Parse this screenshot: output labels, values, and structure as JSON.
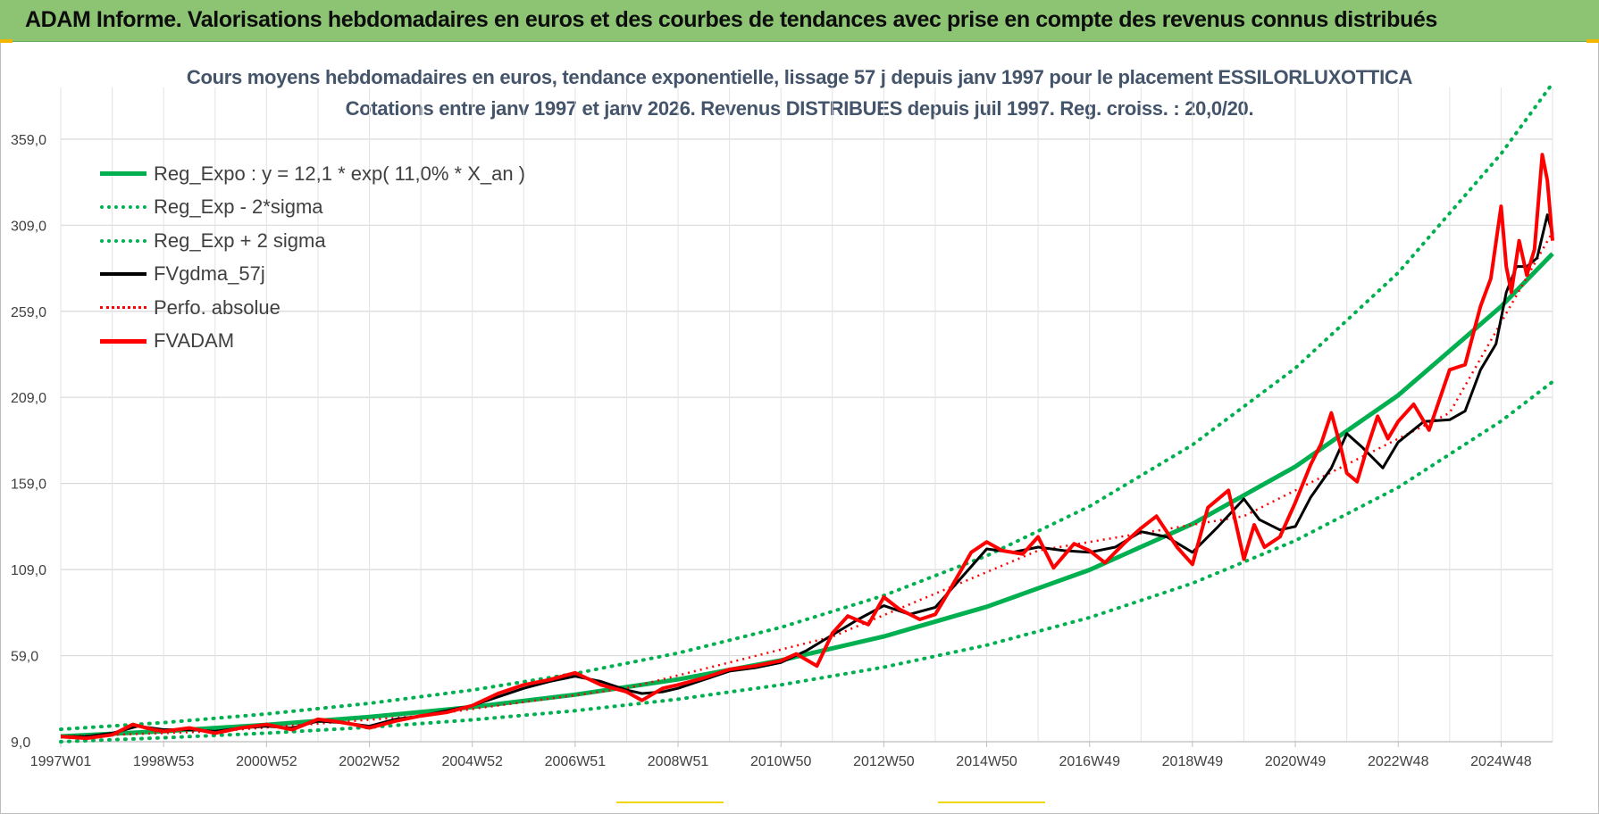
{
  "banner": {
    "title": "ADAM Informe. Valorisations hebdomadaires en euros et des courbes de tendances avec prise en compte des revenus connus distribués"
  },
  "colors": {
    "banner_bg": "#8cc474",
    "trend": "#00b050",
    "fvgdma": "#000000",
    "fvadam": "#ff0000",
    "title_text": "#44546a"
  },
  "chart_data": {
    "type": "line",
    "title": "Cours moyens hebdomadaires en euros, tendance exponentielle, lissage 57 j depuis janv 1997 pour le placement ESSILORLUXOTTICA",
    "subtitle": "Cotations entre janv 1997 et janv 2026. Revenus DISTRIBUES depuis juil 1997. Reg. croiss. : 20,0/20.",
    "xlabel": "",
    "ylabel": "",
    "ylim": [
      9,
      389
    ],
    "xlim": [
      1997.0,
      2026.0
    ],
    "y_ticks": [
      "9,0",
      "59,0",
      "109,0",
      "159,0",
      "209,0",
      "259,0",
      "309,0",
      "359,0"
    ],
    "y_tick_values": [
      9,
      59,
      109,
      159,
      209,
      259,
      309,
      359
    ],
    "x_ticks": [
      "1997W01",
      "1998W53",
      "2000W52",
      "2002W52",
      "2004W52",
      "2006W51",
      "2008W51",
      "2010W50",
      "2012W50",
      "2014W50",
      "2016W49",
      "2018W49",
      "2020W49",
      "2022W48",
      "2024W48"
    ],
    "x_tick_values": [
      1997.0,
      1999.0,
      2001.0,
      2003.0,
      2005.0,
      2007.0,
      2009.0,
      2011.0,
      2013.0,
      2015.0,
      2017.0,
      2019.0,
      2021.0,
      2023.0,
      2025.0
    ],
    "grid": true,
    "legend_position": "top-left",
    "legend": [
      "Reg_Expo : y = 12,1 * exp( 11,0% *  X_an )",
      "Reg_Exp - 2*sigma",
      "Reg_Exp + 2 sigma",
      "FVgdma_57j",
      "Perfo. absolue",
      "FVADAM"
    ],
    "series": [
      {
        "name": "Reg_Expo : y = 12,1 * exp( 11,0% *  X_an )",
        "style": "solid-green",
        "x": [
          1997,
          1999,
          2001,
          2003,
          2005,
          2007,
          2009,
          2011,
          2013,
          2015,
          2017,
          2019,
          2021,
          2023,
          2025,
          2026
        ],
        "values": [
          12.1,
          15.1,
          18.8,
          23.4,
          29.1,
          36.3,
          45.2,
          56.3,
          70.1,
          87.4,
          108.8,
          135.5,
          168.8,
          210.2,
          261.8,
          292.4
        ]
      },
      {
        "name": "Reg_Exp - 2*sigma",
        "style": "dotted-green",
        "x": [
          1997,
          1999,
          2001,
          2003,
          2005,
          2007,
          2009,
          2011,
          2013,
          2015,
          2017,
          2019,
          2021,
          2023,
          2025,
          2026
        ],
        "values": [
          9.0,
          11.3,
          14.0,
          17.4,
          21.7,
          27.0,
          33.7,
          42.0,
          52.3,
          65.1,
          81.1,
          101.0,
          125.8,
          156.7,
          195.2,
          218.0
        ]
      },
      {
        "name": "Reg_Exp + 2 sigma",
        "style": "dotted-green",
        "x": [
          1997,
          1999,
          2001,
          2003,
          2005,
          2007,
          2009,
          2011,
          2013,
          2015,
          2017,
          2019,
          2021,
          2023,
          2025,
          2026
        ],
        "values": [
          16.2,
          20.1,
          25.1,
          31.3,
          39.0,
          48.6,
          60.5,
          75.4,
          93.9,
          117.0,
          145.7,
          181.4,
          226.0,
          281.4,
          350.5,
          391.4
        ]
      },
      {
        "name": "FVgdma_57j",
        "style": "solid-black",
        "x": [
          1997,
          1997.5,
          1998,
          1998.5,
          1999,
          1999.5,
          2000,
          2000.5,
          2001,
          2001.5,
          2002,
          2002.5,
          2003,
          2003.5,
          2004,
          2004.5,
          2005,
          2005.5,
          2006,
          2006.5,
          2007,
          2007.5,
          2008,
          2008.3,
          2008.7,
          2009,
          2009.5,
          2010,
          2010.5,
          2011,
          2011.5,
          2012,
          2012.5,
          2013,
          2013.5,
          2014,
          2014.5,
          2015,
          2015.5,
          2016,
          2016.5,
          2017,
          2017.5,
          2018,
          2018.5,
          2019,
          2019.5,
          2020,
          2020.3,
          2020.7,
          2021,
          2021.3,
          2021.7,
          2022,
          2022.3,
          2022.7,
          2023,
          2023.5,
          2024,
          2024.3,
          2024.6,
          2024.9,
          2025.1,
          2025.3,
          2025.5,
          2025.7,
          2025.9,
          2026
        ],
        "values": [
          12,
          12,
          14,
          18,
          16,
          16,
          15,
          17,
          18,
          17,
          21,
          20,
          18,
          22,
          24,
          27,
          30,
          35,
          40,
          44,
          47,
          44,
          39,
          37,
          38,
          40,
          45,
          50,
          52,
          55,
          62,
          71,
          80,
          88,
          83,
          87,
          104,
          121,
          119,
          122,
          120,
          119,
          122,
          131,
          128,
          119,
          134,
          150,
          138,
          132,
          134,
          151,
          168,
          188,
          180,
          168,
          183,
          195,
          196,
          201,
          225,
          240,
          270,
          285,
          285,
          290,
          315,
          304
        ]
      },
      {
        "name": "Perfo. absolue",
        "style": "dotted-red",
        "x": [
          1997,
          2000,
          2004,
          2008,
          2012,
          2016,
          2020,
          2024,
          2026
        ],
        "values": [
          12,
          15,
          24,
          40,
          70,
          120,
          140,
          200,
          305
        ]
      },
      {
        "name": "FVADAM",
        "style": "solid-red",
        "x": [
          1997,
          1997.5,
          1998,
          1998.4,
          1998.8,
          1999,
          1999.5,
          2000,
          2000.5,
          2001,
          2001.5,
          2002,
          2002.3,
          2002.7,
          2003,
          2003.5,
          2004,
          2004.5,
          2005,
          2005.5,
          2006,
          2006.5,
          2007,
          2007.5,
          2008,
          2008.3,
          2008.7,
          2009,
          2009.5,
          2010,
          2010.5,
          2011,
          2011.3,
          2011.7,
          2012,
          2012.3,
          2012.7,
          2013,
          2013.3,
          2013.7,
          2014,
          2014.3,
          2014.7,
          2015,
          2015.3,
          2015.7,
          2016,
          2016.3,
          2016.7,
          2017,
          2017.3,
          2017.7,
          2018,
          2018.3,
          2018.7,
          2019,
          2019.3,
          2019.7,
          2020,
          2020.2,
          2020.4,
          2020.7,
          2021,
          2021.3,
          2021.5,
          2021.7,
          2021.9,
          2022,
          2022.2,
          2022.4,
          2022.6,
          2022.8,
          2023,
          2023.3,
          2023.6,
          2024,
          2024.3,
          2024.6,
          2024.8,
          2025,
          2025.1,
          2025.2,
          2025.35,
          2025.5,
          2025.65,
          2025.8,
          2025.9,
          2026
        ],
        "values": [
          12,
          11,
          13,
          19,
          16,
          15,
          17,
          14,
          17,
          19,
          16,
          22,
          21,
          19,
          17,
          21,
          24,
          26,
          30,
          37,
          42,
          45,
          49,
          42,
          38,
          33,
          40,
          42,
          46,
          51,
          53,
          56,
          60,
          53,
          72,
          82,
          77,
          93,
          86,
          80,
          83,
          98,
          119,
          125,
          120,
          118,
          128,
          110,
          124,
          120,
          113,
          125,
          133,
          140,
          122,
          112,
          145,
          155,
          115,
          135,
          122,
          128,
          148,
          170,
          182,
          200,
          178,
          165,
          160,
          180,
          198,
          185,
          195,
          205,
          190,
          225,
          228,
          262,
          278,
          320,
          285,
          270,
          300,
          280,
          295,
          350,
          335,
          300
        ]
      }
    ]
  }
}
